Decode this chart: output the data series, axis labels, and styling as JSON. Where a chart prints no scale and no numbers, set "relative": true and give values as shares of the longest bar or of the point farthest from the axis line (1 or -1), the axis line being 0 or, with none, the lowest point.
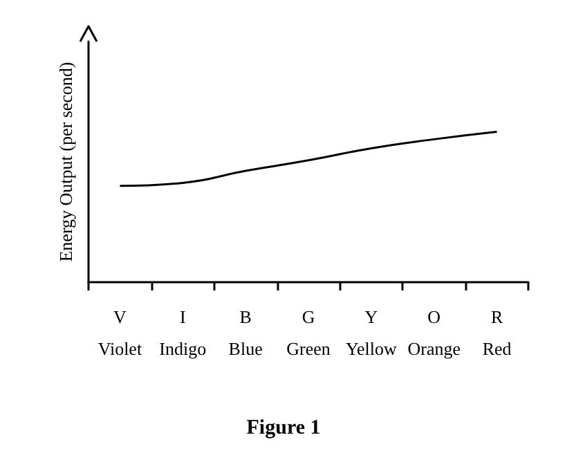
{
  "chart_data": {
    "type": "line",
    "title": "Figure 1",
    "ylabel": "Energy Output (per second)",
    "relative": true,
    "categories": [
      "V\nViolet",
      "I\nIndigo",
      "B\nBlue",
      "G\nGreen",
      "Y\nYellow",
      "O\nOrange",
      "R\nRed"
    ],
    "series": [
      {
        "color": "#000000",
        "values": [
          0.64,
          0.66,
          0.74,
          0.81,
          0.89,
          0.95,
          1
        ]
      }
    ],
    "marker": "none",
    "line_style": "solid",
    "grid": false
  }
}
